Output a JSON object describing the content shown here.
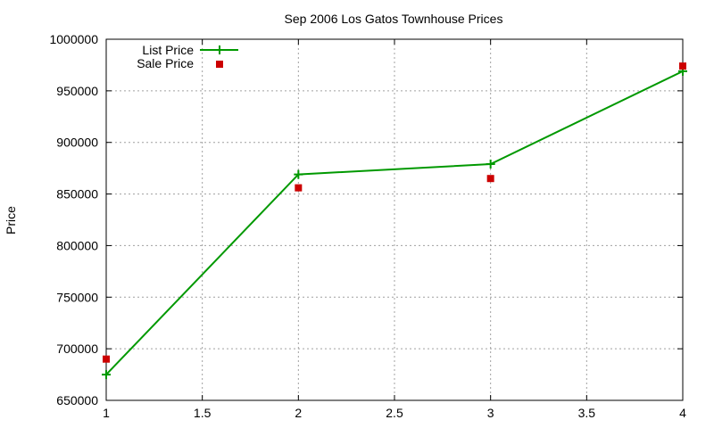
{
  "chart_data": {
    "type": "line",
    "title": "Sep 2006 Los Gatos Townhouse Prices",
    "xlabel": "",
    "ylabel": "Price",
    "xlim": [
      1,
      4
    ],
    "ylim": [
      650000,
      1000000
    ],
    "xticks": [
      1,
      1.5,
      2,
      2.5,
      3,
      3.5,
      4
    ],
    "yticks": [
      650000,
      700000,
      750000,
      800000,
      850000,
      900000,
      950000,
      1000000
    ],
    "grid": true,
    "legend_position": "top-left",
    "series": [
      {
        "name": "List Price",
        "style": "line-with-plus-markers",
        "color": "#009900",
        "x": [
          1,
          2,
          3,
          4
        ],
        "y": [
          675000,
          869000,
          879000,
          969000
        ]
      },
      {
        "name": "Sale Price",
        "style": "square-markers",
        "color": "#cc0000",
        "x": [
          1,
          2,
          3,
          4
        ],
        "y": [
          690000,
          856000,
          865000,
          974000
        ]
      }
    ]
  }
}
